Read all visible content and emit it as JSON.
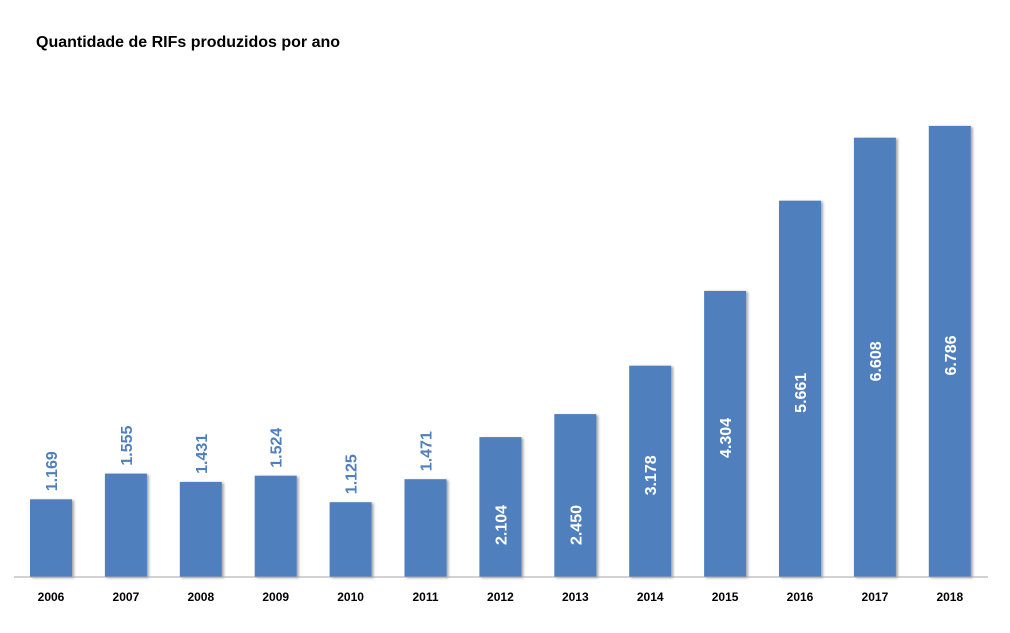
{
  "chart_data": {
    "type": "bar",
    "title": "Quantidade de RIFs produzidos por ano",
    "categories": [
      "2006",
      "2007",
      "2008",
      "2009",
      "2010",
      "2011",
      "2012",
      "2013",
      "2014",
      "2015",
      "2016",
      "2017",
      "2018"
    ],
    "values": [
      1169,
      1555,
      1431,
      1524,
      1125,
      1471,
      2104,
      2450,
      3178,
      4304,
      5661,
      6608,
      6786
    ],
    "data_labels": [
      "1.169",
      "1.555",
      "1.431",
      "1.524",
      "1.125",
      "1.471",
      "2.104",
      "2.450",
      "3.178",
      "4.304",
      "5.661",
      "6.608",
      "6.786"
    ],
    "xlabel": "",
    "ylabel": "",
    "ylim": [
      0,
      6950
    ],
    "grid": false,
    "legend": "none",
    "bar_color": "#4f7fbd",
    "label_outside_color": "#4f7fbd",
    "label_inside_color": "#ffffff"
  }
}
